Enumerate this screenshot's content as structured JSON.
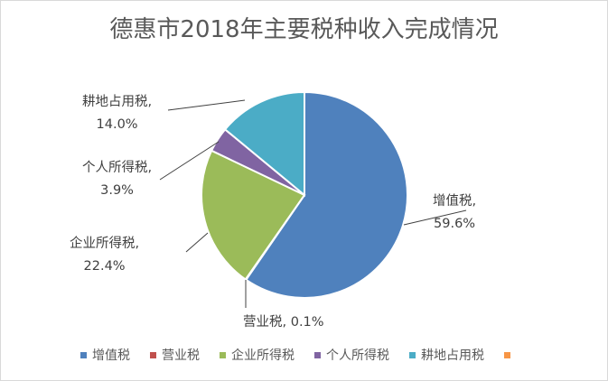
{
  "chart_data": {
    "type": "pie",
    "title": "德惠市2018年主要税种收入完成情况",
    "slices": [
      {
        "name": "增值税",
        "value": 59.6,
        "label": "59.6%",
        "color": "#4f81bd"
      },
      {
        "name": "营业税",
        "value": 0.1,
        "label": "0.1%",
        "color": "#c0504d"
      },
      {
        "name": "企业所得税",
        "value": 22.4,
        "label": "22.4%",
        "color": "#9bbb59"
      },
      {
        "name": "个人所得税",
        "value": 3.9,
        "label": "3.9%",
        "color": "#8064a2"
      },
      {
        "name": "耕地占用税",
        "value": 14.0,
        "label": "14.0%",
        "color": "#4bacc6"
      },
      {
        "name": "",
        "value": 0,
        "label": "",
        "color": "#f79646"
      }
    ],
    "legend_position": "bottom"
  }
}
